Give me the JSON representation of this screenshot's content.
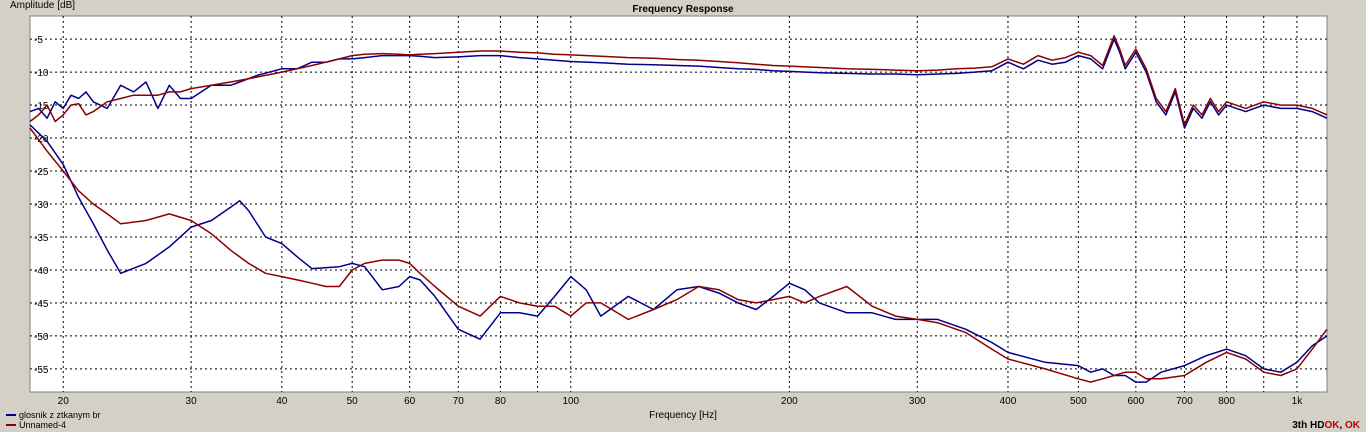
{
  "chart_data": {
    "type": "line",
    "title": "Frequency Response",
    "ylabel": "Amplitude [dB]",
    "xlabel": "Frequency [Hz]",
    "xscale": "log",
    "xlim": [
      18,
      1100
    ],
    "ylim": [
      -58.5,
      -1.5
    ],
    "grid": true,
    "legend_position": "bottom-left",
    "y_ticks": [
      -5,
      -10,
      -15,
      -20,
      -25,
      -30,
      -35,
      -40,
      -45,
      -50,
      -55
    ],
    "x_ticks": [
      {
        "value": 20,
        "label": "20"
      },
      {
        "value": 30,
        "label": "30"
      },
      {
        "value": 40,
        "label": "40"
      },
      {
        "value": 50,
        "label": "50"
      },
      {
        "value": 60,
        "label": "60"
      },
      {
        "value": 70,
        "label": "70"
      },
      {
        "value": 80,
        "label": "80"
      },
      {
        "value": 100,
        "label": "100"
      },
      {
        "value": 200,
        "label": "200"
      },
      {
        "value": 300,
        "label": "300"
      },
      {
        "value": 400,
        "label": "400"
      },
      {
        "value": 500,
        "label": "500"
      },
      {
        "value": 600,
        "label": "600"
      },
      {
        "value": 700,
        "label": "700"
      },
      {
        "value": 800,
        "label": "800"
      },
      {
        "value": 1000,
        "label": "1k"
      }
    ],
    "minor_gridlines_x": [
      90,
      900
    ],
    "series": [
      {
        "name": "glosnik z ztkanym br",
        "color": "#00008b",
        "group": "response",
        "x": [
          18,
          18.5,
          19,
          19.5,
          20,
          20.5,
          21,
          21.5,
          22,
          23,
          24,
          25,
          26,
          27,
          28,
          29,
          30,
          32,
          34,
          35,
          37,
          40,
          42,
          44,
          46,
          48,
          50,
          52,
          55,
          58,
          60,
          62,
          65,
          70,
          75,
          80,
          85,
          90,
          95,
          100,
          110,
          120,
          130,
          140,
          150,
          160,
          170,
          180,
          190,
          200,
          220,
          240,
          260,
          280,
          300,
          320,
          340,
          360,
          380,
          400,
          420,
          440,
          460,
          480,
          500,
          520,
          540,
          560,
          570,
          580,
          600,
          620,
          640,
          660,
          680,
          700,
          720,
          740,
          760,
          780,
          800,
          850,
          900,
          950,
          1000,
          1050,
          1100
        ],
        "y": [
          -16,
          -15.5,
          -17,
          -14.5,
          -15.5,
          -13.5,
          -14,
          -13,
          -14.5,
          -15.5,
          -12,
          -13,
          -11.5,
          -15.5,
          -12,
          -14,
          -14,
          -12,
          -12,
          -11.5,
          -10.5,
          -9.5,
          -9.5,
          -8.5,
          -8.5,
          -8,
          -8,
          -7.8,
          -7.5,
          -7.5,
          -7.5,
          -7.6,
          -7.8,
          -7.7,
          -7.5,
          -7.5,
          -7.8,
          -8,
          -8.2,
          -8.4,
          -8.6,
          -8.8,
          -8.9,
          -9,
          -9.1,
          -9.3,
          -9.5,
          -9.6,
          -9.8,
          -9.9,
          -10.1,
          -10.2,
          -10.3,
          -10.3,
          -10.4,
          -10.3,
          -10.2,
          -10,
          -9.8,
          -8.5,
          -9.5,
          -8.2,
          -8.8,
          -8.5,
          -7.5,
          -8,
          -9.5,
          -5,
          -7,
          -9.5,
          -7,
          -10,
          -14.5,
          -16.5,
          -13,
          -18.5,
          -15.5,
          -17,
          -14.5,
          -16.5,
          -15,
          -16,
          -15,
          -15.5,
          -15.5,
          -16,
          -17
        ]
      },
      {
        "name": "Unnamed-4",
        "color": "#8b0000",
        "group": "response",
        "x": [
          18,
          18.5,
          19,
          19.5,
          20,
          20.5,
          21,
          21.5,
          22,
          23,
          24,
          25,
          26,
          27,
          28,
          29,
          30,
          32,
          34,
          36,
          38,
          40,
          42,
          44,
          46,
          48,
          50,
          52,
          55,
          58,
          60,
          62,
          65,
          70,
          75,
          80,
          85,
          90,
          95,
          100,
          110,
          120,
          130,
          140,
          150,
          160,
          170,
          180,
          190,
          200,
          220,
          240,
          260,
          280,
          300,
          320,
          340,
          360,
          380,
          400,
          420,
          440,
          460,
          480,
          500,
          520,
          540,
          560,
          570,
          580,
          600,
          620,
          640,
          660,
          680,
          700,
          720,
          740,
          760,
          780,
          800,
          850,
          900,
          950,
          1000,
          1050,
          1100
        ],
        "y": [
          -17.5,
          -16.5,
          -15,
          -17.5,
          -16.5,
          -15,
          -14.8,
          -16.5,
          -16,
          -14.5,
          -14,
          -13.5,
          -13.5,
          -13.5,
          -13,
          -13,
          -12.5,
          -12,
          -11.5,
          -11,
          -10.5,
          -10,
          -9.5,
          -9,
          -8.5,
          -8,
          -7.5,
          -7.3,
          -7.2,
          -7.3,
          -7.4,
          -7.3,
          -7.2,
          -7,
          -6.8,
          -6.8,
          -7,
          -7.1,
          -7.3,
          -7.4,
          -7.6,
          -7.8,
          -7.9,
          -8.1,
          -8.2,
          -8.4,
          -8.6,
          -8.8,
          -9,
          -9.1,
          -9.3,
          -9.5,
          -9.6,
          -9.7,
          -9.8,
          -9.7,
          -9.5,
          -9.4,
          -9.2,
          -8,
          -8.8,
          -7.5,
          -8.2,
          -7.8,
          -7,
          -7.5,
          -9,
          -4.5,
          -6.5,
          -9,
          -6.5,
          -9.5,
          -14,
          -16,
          -12.5,
          -18,
          -15,
          -16.5,
          -14,
          -16,
          -14.5,
          -15.5,
          -14.5,
          -15,
          -15,
          -15.5,
          -16.5
        ]
      },
      {
        "name": "glosnik z ztkanym br",
        "color": "#00008b",
        "group": "3th HD",
        "x": [
          18,
          19,
          20,
          21,
          22,
          23,
          24,
          26,
          28,
          30,
          32,
          34,
          35,
          36,
          38,
          40,
          42,
          44,
          48,
          50,
          52,
          55,
          58,
          60,
          62,
          65,
          70,
          75,
          80,
          85,
          90,
          95,
          100,
          105,
          110,
          120,
          130,
          140,
          150,
          160,
          170,
          180,
          190,
          200,
          210,
          220,
          240,
          260,
          280,
          300,
          320,
          350,
          380,
          400,
          450,
          500,
          520,
          540,
          560,
          580,
          600,
          620,
          650,
          700,
          750,
          800,
          850,
          900,
          950,
          1000,
          1050,
          1100
        ],
        "y": [
          -18,
          -20.5,
          -24,
          -29,
          -33,
          -37,
          -40.5,
          -39,
          -36.5,
          -33.5,
          -32.5,
          -30.5,
          -29.5,
          -31,
          -35,
          -36,
          -38,
          -39.8,
          -39.5,
          -39,
          -39.5,
          -43,
          -42.5,
          -41,
          -41.5,
          -44,
          -49,
          -50.5,
          -46.5,
          -46.5,
          -47,
          -44,
          -41,
          -43,
          -47,
          -44,
          -46,
          -43,
          -42.5,
          -43.5,
          -45,
          -46,
          -44,
          -42,
          -43,
          -45,
          -46.5,
          -46.5,
          -47.5,
          -47.5,
          -47.5,
          -49,
          -51,
          -52.5,
          -54,
          -54.5,
          -55.5,
          -55,
          -56,
          -56,
          -57,
          -57,
          -55.5,
          -54.5,
          -53,
          -52,
          -53,
          -55,
          -55.5,
          -54,
          -51.5,
          -50
        ]
      },
      {
        "name": "Unnamed-4",
        "color": "#8b0000",
        "group": "3th HD",
        "x": [
          18,
          19,
          20,
          21,
          22,
          23,
          24,
          26,
          28,
          30,
          32,
          34,
          36,
          38,
          40,
          42,
          44,
          46,
          48,
          50,
          52,
          55,
          58,
          60,
          62,
          65,
          70,
          75,
          80,
          85,
          90,
          95,
          100,
          105,
          110,
          120,
          130,
          140,
          150,
          160,
          170,
          180,
          190,
          200,
          210,
          220,
          240,
          260,
          280,
          300,
          320,
          350,
          380,
          400,
          450,
          500,
          520,
          540,
          560,
          580,
          600,
          620,
          650,
          700,
          750,
          800,
          850,
          900,
          950,
          1000,
          1050,
          1100
        ],
        "y": [
          -18.5,
          -22,
          -25,
          -28,
          -30,
          -31.5,
          -33,
          -32.5,
          -31.5,
          -32.5,
          -34.5,
          -37,
          -39,
          -40.5,
          -41,
          -41.5,
          -42,
          -42.5,
          -42.5,
          -40,
          -39,
          -38.5,
          -38.5,
          -39,
          -40.5,
          -42.5,
          -45.5,
          -47,
          -44,
          -45,
          -45.5,
          -45.5,
          -47,
          -45,
          -45,
          -47.5,
          -46,
          -44.5,
          -42.5,
          -43,
          -44.5,
          -45,
          -44.5,
          -44,
          -45,
          -44,
          -42.5,
          -45.5,
          -47,
          -47.5,
          -48,
          -49.5,
          -52,
          -53.5,
          -55,
          -56.5,
          -57,
          -56.5,
          -56,
          -55.5,
          -55.5,
          -56.5,
          -56.5,
          -56,
          -54,
          -52.5,
          -53.5,
          -55.5,
          -56,
          -55,
          -52,
          -49
        ]
      }
    ]
  },
  "status": {
    "prefix": "3th HD",
    "ok1": "OK",
    "ok2": "OK"
  },
  "legend": [
    {
      "label": "glosnik z ztkanym br",
      "color": "#00008b"
    },
    {
      "label": "Unnamed-4",
      "color": "#8b0000"
    }
  ]
}
